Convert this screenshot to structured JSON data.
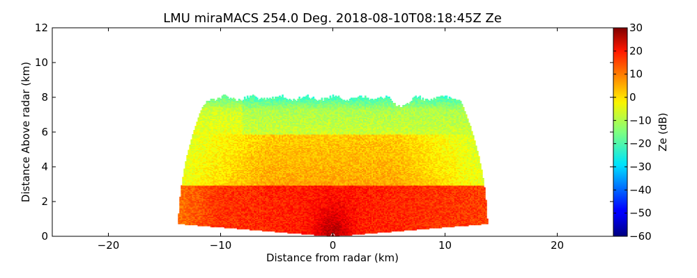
{
  "chart_data": {
    "type": "heatmap",
    "title": "LMU miraMACS 254.0 Deg. 2018-08-10T08:18:45Z  Ze",
    "xlabel": "Distance from radar (km)",
    "ylabel": "Distance Above radar  (km)",
    "xlim": [
      -25,
      25
    ],
    "ylim": [
      0,
      12
    ],
    "x_ticks": [
      -20,
      -10,
      0,
      10,
      20
    ],
    "x_tick_labels": [
      "−20",
      "−10",
      "0",
      "10",
      "20"
    ],
    "y_ticks": [
      0,
      2,
      4,
      6,
      8,
      10,
      12
    ],
    "y_tick_labels": [
      "0",
      "2",
      "4",
      "6",
      "8",
      "10",
      "12"
    ],
    "colorbar": {
      "label": "Ze (dB)",
      "range": [
        -60,
        30
      ],
      "ticks": [
        -60,
        -50,
        -40,
        -30,
        -20,
        -10,
        0,
        10,
        20,
        30
      ],
      "tick_labels": [
        "−60",
        "−50",
        "−40",
        "−30",
        "−20",
        "−10",
        "0",
        "10",
        "20",
        "30"
      ],
      "colormap": "jet"
    },
    "sector": {
      "max_range_km": 13.8,
      "elevation_deg_min": 3,
      "elevation_deg_max": 177,
      "echo_top_km": 8.2
    },
    "grid": false
  }
}
